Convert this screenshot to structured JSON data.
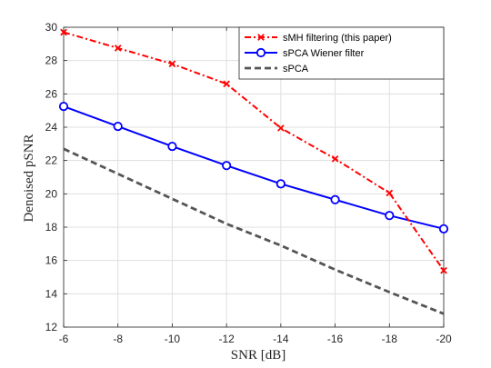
{
  "chart_data": {
    "type": "line",
    "xlabel": "SNR [dB]",
    "ylabel": "Denoised pSNR",
    "x": [
      -6,
      -8,
      -10,
      -12,
      -14,
      -16,
      -18,
      -20
    ],
    "xlim": [
      -6,
      -20
    ],
    "x_reversed": true,
    "xticks": [
      -6,
      -8,
      -10,
      -12,
      -14,
      -16,
      -18,
      -20
    ],
    "xtick_labels": [
      "-6",
      "-8",
      "-10",
      "-12",
      "-14",
      "-16",
      "-18",
      "-20"
    ],
    "ylim": [
      12,
      30
    ],
    "yticks": [
      12,
      14,
      16,
      18,
      20,
      22,
      24,
      26,
      28,
      30
    ],
    "ytick_labels": [
      "12",
      "14",
      "16",
      "18",
      "20",
      "22",
      "24",
      "26",
      "28",
      "30"
    ],
    "grid": true,
    "legend_position": "top-right",
    "series": [
      {
        "name": "sMH filtering (this paper)",
        "values": [
          29.7,
          28.75,
          27.8,
          26.6,
          23.95,
          22.1,
          20.05,
          15.4
        ],
        "color": "#ff0000",
        "line_style": "dash-dot",
        "marker": "x"
      },
      {
        "name": "sPCA Wiener filter",
        "values": [
          25.25,
          24.05,
          22.85,
          21.7,
          20.6,
          19.65,
          18.7,
          17.9
        ],
        "color": "#0000ff",
        "line_style": "solid",
        "marker": "circle"
      },
      {
        "name": "sPCA",
        "values": [
          22.7,
          21.2,
          19.7,
          18.2,
          16.9,
          15.45,
          14.1,
          12.8
        ],
        "color": "#555555",
        "line_style": "dashed",
        "marker": "none"
      }
    ]
  }
}
